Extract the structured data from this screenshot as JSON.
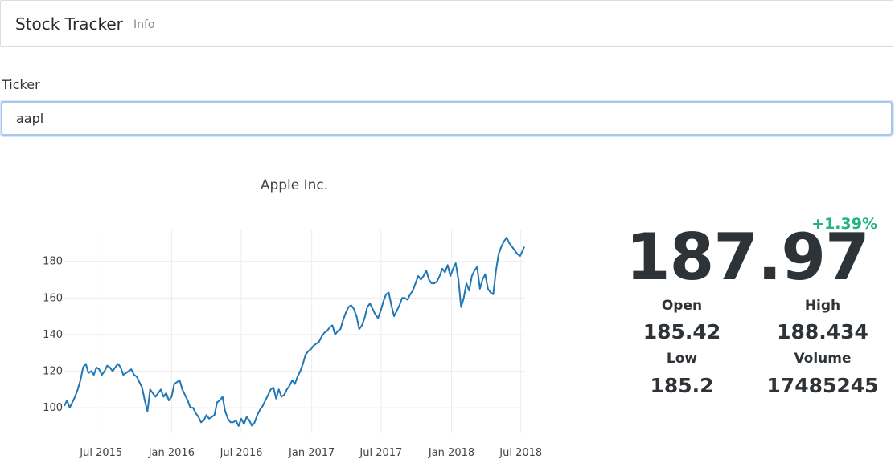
{
  "navbar": {
    "brand": "Stock Tracker",
    "info_link": "Info"
  },
  "ticker": {
    "label": "Ticker",
    "value": "aapl"
  },
  "quote": {
    "change": "+1.39%",
    "price": "187.97",
    "open_label": "Open",
    "open_value": "185.42",
    "high_label": "High",
    "high_value": "188.434",
    "low_label": "Low",
    "low_value": "185.2",
    "volume_label": "Volume",
    "volume_value": "17485245",
    "change_color": "#24b47e"
  },
  "chart_data": {
    "type": "line",
    "title": "Apple Inc.",
    "xlabel": "",
    "ylabel": "",
    "ylim": [
      86,
      197
    ],
    "xlim": [
      "2015-03-27",
      "2018-07-10"
    ],
    "grid": true,
    "line_color": "#1f77b4",
    "x_ticks": [
      {
        "date": "2015-07-01",
        "label": "Jul 2015"
      },
      {
        "date": "2016-01-01",
        "label": "Jan 2016"
      },
      {
        "date": "2016-07-01",
        "label": "Jul 2016"
      },
      {
        "date": "2017-01-01",
        "label": "Jan 2017"
      },
      {
        "date": "2017-07-01",
        "label": "Jul 2017"
      },
      {
        "date": "2018-01-01",
        "label": "Jan 2018"
      },
      {
        "date": "2018-07-01",
        "label": "Jul 2018"
      }
    ],
    "y_ticks": [
      100,
      120,
      140,
      160,
      180
    ],
    "series": [
      {
        "x": [
          "2015-03-27",
          "2015-04-03",
          "2015-04-10",
          "2015-04-17",
          "2015-04-24",
          "2015-05-01",
          "2015-05-08",
          "2015-05-15",
          "2015-05-22",
          "2015-05-29",
          "2015-06-05",
          "2015-06-12",
          "2015-06-19",
          "2015-06-26",
          "2015-07-03",
          "2015-07-10",
          "2015-07-17",
          "2015-07-24",
          "2015-07-31",
          "2015-08-07",
          "2015-08-14",
          "2015-08-21",
          "2015-08-28",
          "2015-09-04",
          "2015-09-11",
          "2015-09-18",
          "2015-09-25",
          "2015-10-02",
          "2015-10-09",
          "2015-10-16",
          "2015-10-23",
          "2015-10-30",
          "2015-11-06",
          "2015-11-13",
          "2015-11-20",
          "2015-11-27",
          "2015-12-04",
          "2015-12-11",
          "2015-12-18",
          "2015-12-25",
          "2016-01-01",
          "2016-01-08",
          "2016-01-15",
          "2016-01-22",
          "2016-01-29",
          "2016-02-05",
          "2016-02-12",
          "2016-02-19",
          "2016-02-26",
          "2016-03-04",
          "2016-03-11",
          "2016-03-18",
          "2016-03-25",
          "2016-04-01",
          "2016-04-08",
          "2016-04-15",
          "2016-04-22",
          "2016-04-29",
          "2016-05-06",
          "2016-05-13",
          "2016-05-20",
          "2016-05-27",
          "2016-06-03",
          "2016-06-10",
          "2016-06-17",
          "2016-06-24",
          "2016-07-01",
          "2016-07-08",
          "2016-07-15",
          "2016-07-22",
          "2016-07-29",
          "2016-08-05",
          "2016-08-12",
          "2016-08-19",
          "2016-08-26",
          "2016-09-02",
          "2016-09-09",
          "2016-09-16",
          "2016-09-23",
          "2016-09-30",
          "2016-10-07",
          "2016-10-14",
          "2016-10-21",
          "2016-10-28",
          "2016-11-04",
          "2016-11-11",
          "2016-11-18",
          "2016-11-25",
          "2016-12-02",
          "2016-12-09",
          "2016-12-16",
          "2016-12-23",
          "2016-12-30",
          "2017-01-06",
          "2017-01-13",
          "2017-01-20",
          "2017-01-27",
          "2017-02-03",
          "2017-02-10",
          "2017-02-17",
          "2017-02-24",
          "2017-03-03",
          "2017-03-10",
          "2017-03-17",
          "2017-03-24",
          "2017-03-31",
          "2017-04-07",
          "2017-04-14",
          "2017-04-21",
          "2017-04-28",
          "2017-05-05",
          "2017-05-12",
          "2017-05-19",
          "2017-05-26",
          "2017-06-02",
          "2017-06-09",
          "2017-06-16",
          "2017-06-23",
          "2017-06-30",
          "2017-07-07",
          "2017-07-14",
          "2017-07-21",
          "2017-07-28",
          "2017-08-04",
          "2017-08-11",
          "2017-08-18",
          "2017-08-25",
          "2017-09-01",
          "2017-09-08",
          "2017-09-15",
          "2017-09-22",
          "2017-09-29",
          "2017-10-06",
          "2017-10-13",
          "2017-10-20",
          "2017-10-27",
          "2017-11-03",
          "2017-11-10",
          "2017-11-17",
          "2017-11-24",
          "2017-12-01",
          "2017-12-08",
          "2017-12-15",
          "2017-12-22",
          "2017-12-29",
          "2018-01-05",
          "2018-01-12",
          "2018-01-19",
          "2018-01-26",
          "2018-02-02",
          "2018-02-09",
          "2018-02-16",
          "2018-02-23",
          "2018-03-02",
          "2018-03-09",
          "2018-03-16",
          "2018-03-23",
          "2018-03-30",
          "2018-04-06",
          "2018-04-13",
          "2018-04-20",
          "2018-04-27",
          "2018-05-04",
          "2018-05-11",
          "2018-05-18",
          "2018-05-25",
          "2018-06-01",
          "2018-06-08",
          "2018-06-15",
          "2018-06-22",
          "2018-06-29",
          "2018-07-06",
          "2018-07-10"
        ],
        "y": [
          101,
          104,
          100,
          103,
          106,
          110,
          115,
          122,
          124,
          119,
          120,
          118,
          122,
          121,
          118,
          120,
          123,
          122,
          120,
          122,
          124,
          122,
          118,
          119,
          120,
          121,
          118,
          117,
          114,
          111,
          104,
          98,
          110,
          108,
          106,
          108,
          110,
          106,
          108,
          104,
          106,
          113,
          114,
          115,
          110,
          107,
          104,
          100,
          100,
          97,
          95,
          92,
          93,
          96,
          94,
          95,
          96,
          103,
          104,
          106,
          98,
          94,
          92,
          92,
          93,
          90,
          94,
          91,
          95,
          93,
          90,
          92,
          96,
          99,
          101,
          104,
          107,
          110,
          111,
          105,
          110,
          106,
          107,
          110,
          112,
          115,
          113,
          117,
          120,
          124,
          129,
          131,
          132,
          134,
          135,
          136,
          139,
          141,
          142,
          144,
          145,
          140,
          142,
          143,
          148,
          152,
          155,
          156,
          154,
          150,
          143,
          145,
          149,
          155,
          157,
          154,
          151,
          149,
          153,
          158,
          162,
          163,
          156,
          150,
          153,
          156,
          160,
          160,
          159,
          162,
          164,
          168,
          172,
          170,
          172,
          175,
          170,
          168,
          168,
          169,
          172,
          176,
          174,
          178,
          172,
          176,
          179,
          170,
          155,
          160,
          168,
          164,
          172,
          175,
          177,
          165,
          170,
          173,
          165,
          163,
          162,
          175,
          184,
          188,
          191,
          193,
          190,
          188,
          186,
          184,
          183,
          186,
          188
        ]
      }
    ]
  }
}
